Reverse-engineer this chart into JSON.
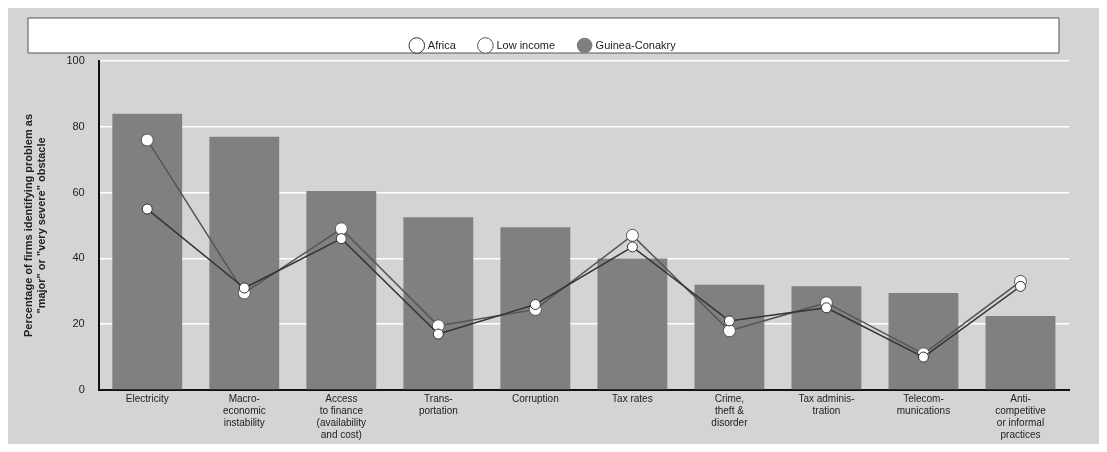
{
  "chart_data": {
    "type": "bar",
    "ylabel": "Percentage of firms identifying problem as\n\"major\" or \"very severe\" obstacle",
    "categories": [
      "Electricity",
      "Macro-\neconomic\ninstability",
      "Access\nto finance\n(availability\nand cost)",
      "Trans-\nportation",
      "Corruption",
      "Tax rates",
      "Crime,\ntheft &\ndisorder",
      "Tax adminis-\ntration",
      "Telecom-\nmunications",
      "Anti-\ncompetitive\nor informal\npractices"
    ],
    "series": [
      {
        "name": "Guinea-Conakry",
        "color": "#808080",
        "values": [
          84,
          77,
          60.5,
          52.5,
          49.5,
          40,
          32,
          31.5,
          29.5,
          22.5
        ]
      },
      {
        "name": "Africa",
        "type": "line",
        "color": "#333333",
        "values": [
          55,
          31,
          46,
          17,
          26,
          43.5,
          21,
          25,
          10,
          31.5
        ]
      },
      {
        "name": "Low income",
        "type": "line",
        "color": "#555555",
        "values": [
          76,
          29.5,
          49,
          19.5,
          24.5,
          47,
          18,
          26.5,
          11,
          33
        ]
      }
    ],
    "ylim": [
      0,
      100
    ],
    "yticks": [
      0,
      20,
      40,
      60,
      80,
      100
    ],
    "grid": "y",
    "legend": "top",
    "marker": "circle",
    "line_style": "solid"
  }
}
